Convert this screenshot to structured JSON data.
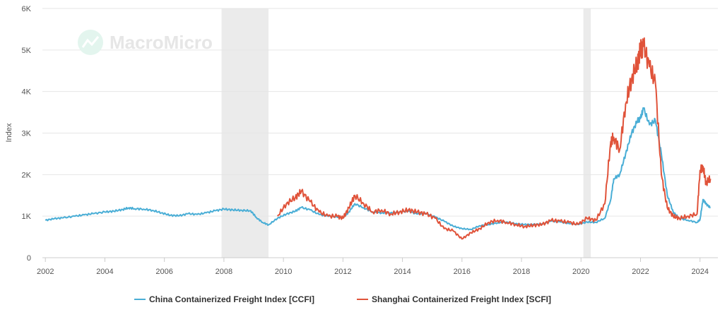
{
  "chart_data": {
    "type": "line",
    "title": "",
    "watermark": "MacroMicro",
    "xlabel": "",
    "ylabel": "Index",
    "xlim": [
      2001.9,
      2024.6
    ],
    "ylim": [
      0,
      6000
    ],
    "y_ticks": [
      {
        "value": 0,
        "label": "0"
      },
      {
        "value": 1000,
        "label": "1K"
      },
      {
        "value": 2000,
        "label": "2K"
      },
      {
        "value": 3000,
        "label": "3K"
      },
      {
        "value": 4000,
        "label": "4K"
      },
      {
        "value": 5000,
        "label": "5K"
      },
      {
        "value": 6000,
        "label": "6K"
      }
    ],
    "x_ticks": [
      {
        "value": 2002,
        "label": "2002"
      },
      {
        "value": 2004,
        "label": "2004"
      },
      {
        "value": 2006,
        "label": "2006"
      },
      {
        "value": 2008,
        "label": "2008"
      },
      {
        "value": 2010,
        "label": "2010"
      },
      {
        "value": 2012,
        "label": "2012"
      },
      {
        "value": 2014,
        "label": "2014"
      },
      {
        "value": 2016,
        "label": "2016"
      },
      {
        "value": 2018,
        "label": "2018"
      },
      {
        "value": 2020,
        "label": "2020"
      },
      {
        "value": 2022,
        "label": "2022"
      },
      {
        "value": 2024,
        "label": "2024"
      }
    ],
    "shaded_periods": [
      {
        "start": 2007.92,
        "end": 2009.5
      },
      {
        "start": 2020.08,
        "end": 2020.33
      }
    ],
    "grid": true,
    "legend_position": "bottom-center",
    "series": [
      {
        "name": "China Containerized Freight Index [CCFI]",
        "color": "#4aaed6",
        "x": [
          2002.0,
          2002.3,
          2002.6,
          2003.0,
          2003.3,
          2003.6,
          2004.0,
          2004.3,
          2004.6,
          2004.8,
          2005.0,
          2005.3,
          2005.6,
          2005.9,
          2006.2,
          2006.5,
          2006.8,
          2007.1,
          2007.4,
          2007.7,
          2008.0,
          2008.3,
          2008.6,
          2008.9,
          2009.1,
          2009.3,
          2009.5,
          2009.8,
          2010.1,
          2010.4,
          2010.6,
          2010.9,
          2011.2,
          2011.5,
          2011.8,
          2012.0,
          2012.2,
          2012.4,
          2012.7,
          2013.0,
          2013.3,
          2013.6,
          2013.9,
          2014.2,
          2014.5,
          2014.8,
          2015.1,
          2015.4,
          2015.7,
          2016.0,
          2016.3,
          2016.6,
          2016.9,
          2017.2,
          2017.5,
          2017.8,
          2018.1,
          2018.4,
          2018.7,
          2019.0,
          2019.3,
          2019.6,
          2019.9,
          2020.2,
          2020.5,
          2020.8,
          2021.0,
          2021.1,
          2021.3,
          2021.5,
          2021.7,
          2021.9,
          2022.0,
          2022.1,
          2022.3,
          2022.5,
          2022.7,
          2022.9,
          2023.1,
          2023.3,
          2023.6,
          2023.9,
          2024.0,
          2024.1,
          2024.2,
          2024.35
        ],
        "values": [
          900,
          940,
          960,
          1000,
          1030,
          1060,
          1100,
          1120,
          1160,
          1200,
          1180,
          1170,
          1140,
          1080,
          1020,
          1010,
          1060,
          1040,
          1080,
          1130,
          1170,
          1150,
          1140,
          1130,
          960,
          850,
          790,
          950,
          1050,
          1120,
          1210,
          1150,
          1040,
          1000,
          980,
          960,
          1100,
          1300,
          1200,
          1100,
          1080,
          1080,
          1100,
          1120,
          1050,
          1060,
          980,
          880,
          760,
          700,
          680,
          770,
          800,
          840,
          860,
          820,
          800,
          800,
          810,
          880,
          860,
          820,
          800,
          860,
          850,
          950,
          1400,
          1900,
          2000,
          2500,
          3000,
          3300,
          3350,
          3600,
          3200,
          3300,
          2500,
          1500,
          1100,
          950,
          900,
          850,
          920,
          1400,
          1300,
          1200
        ]
      },
      {
        "name": "Shanghai Containerized Freight Index [SCFI]",
        "color": "#e0533a",
        "x": [
          2009.8,
          2010.1,
          2010.4,
          2010.6,
          2010.9,
          2011.2,
          2011.5,
          2011.8,
          2012.0,
          2012.2,
          2012.4,
          2012.7,
          2013.0,
          2013.3,
          2013.6,
          2013.9,
          2014.2,
          2014.5,
          2014.8,
          2015.1,
          2015.4,
          2015.7,
          2016.0,
          2016.3,
          2016.6,
          2016.9,
          2017.2,
          2017.5,
          2017.8,
          2018.1,
          2018.4,
          2018.7,
          2019.0,
          2019.3,
          2019.6,
          2019.9,
          2020.2,
          2020.5,
          2020.8,
          2021.0,
          2021.1,
          2021.3,
          2021.5,
          2021.7,
          2021.9,
          2022.0,
          2022.1,
          2022.3,
          2022.5,
          2022.7,
          2022.9,
          2023.1,
          2023.3,
          2023.6,
          2023.9,
          2024.0,
          2024.1,
          2024.2,
          2024.35
        ],
        "values": [
          1000,
          1300,
          1450,
          1600,
          1350,
          1100,
          1000,
          1000,
          950,
          1200,
          1500,
          1300,
          1100,
          1150,
          1050,
          1100,
          1150,
          1100,
          1050,
          950,
          700,
          650,
          450,
          600,
          700,
          850,
          900,
          850,
          800,
          750,
          780,
          800,
          900,
          880,
          850,
          800,
          950,
          900,
          1300,
          2800,
          2900,
          2600,
          3700,
          4300,
          4700,
          5000,
          5100,
          4600,
          4200,
          2000,
          1200,
          1000,
          950,
          1000,
          1050,
          2100,
          2200,
          1800,
          1900
        ]
      }
    ]
  }
}
